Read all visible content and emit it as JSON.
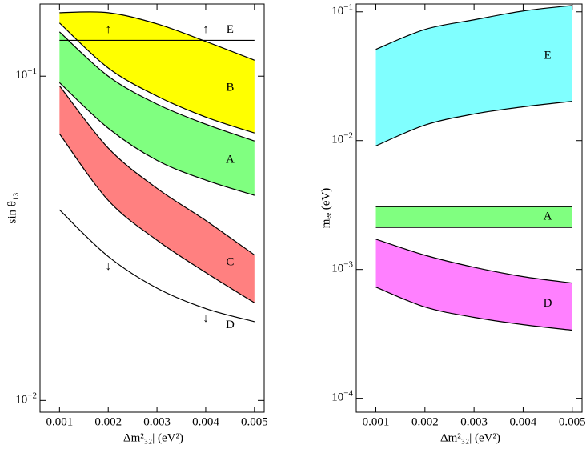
{
  "chart_data": [
    {
      "type": "band",
      "log_y": true,
      "xlabel": "|Δm²₃₂| (eV²)",
      "ylabel": "sin θ₁₃",
      "xlim": [
        0.0006,
        0.0052
      ],
      "ylim": [
        0.0092,
        0.167
      ],
      "xticks": [
        0.001,
        0.002,
        0.003,
        0.004,
        0.005
      ],
      "yticks": [
        {
          "value": 0.01,
          "label": "10−2"
        },
        {
          "value": 0.1,
          "label": "10−1"
        }
      ],
      "series": [
        {
          "name": "A",
          "color": "#80ff80",
          "x": [
            0.001,
            0.002,
            0.003,
            0.004,
            0.005
          ],
          "upper": [
            0.137,
            0.1,
            0.082,
            0.0711,
            0.0631
          ],
          "lower": [
            0.0955,
            0.0691,
            0.055,
            0.0478,
            0.0429
          ]
        },
        {
          "name": "B",
          "color": "#ffff00",
          "x": [
            0.001,
            0.002,
            0.003,
            0.004,
            0.005
          ],
          "upper": [
            0.157,
            0.157,
            0.145,
            0.128,
            0.112
          ],
          "lower": [
            0.146,
            0.106,
            0.0868,
            0.0748,
            0.0668
          ]
        },
        {
          "name": "C",
          "color": "#ff8080",
          "x": [
            0.001,
            0.002,
            0.003,
            0.004,
            0.005
          ],
          "upper": [
            0.0934,
            0.06,
            0.0451,
            0.0359,
            0.0281
          ],
          "lower": [
            0.0664,
            0.0414,
            0.0312,
            0.0248,
            0.02
          ]
        },
        {
          "name": "D",
          "color": "#000000",
          "x": [
            0.001,
            0.002,
            0.003,
            0.004,
            0.005
          ],
          "values": [
            0.0387,
            0.0278,
            0.0222,
            0.0192,
            0.0175
          ],
          "arrow": "↓",
          "arrow_x": [
            0.002,
            0.004
          ]
        },
        {
          "name": "E",
          "color": "#000000",
          "x": [
            0.001,
            0.005
          ],
          "values": [
            0.129,
            0.129
          ],
          "arrow": "↑",
          "arrow_x": [
            0.002,
            0.004
          ]
        }
      ]
    },
    {
      "type": "band",
      "log_y": true,
      "xlabel": "|Δm²₃₂| (eV²)",
      "ylabel": "mₑₑ (eV)",
      "xlim": [
        0.0006,
        0.0052
      ],
      "ylim": [
        7.8e-05,
        0.115
      ],
      "xticks": [
        0.001,
        0.002,
        0.003,
        0.004,
        0.005
      ],
      "yticks": [
        {
          "value": 0.0001,
          "label": "10−4"
        },
        {
          "value": 0.001,
          "label": "10−3"
        },
        {
          "value": 0.01,
          "label": "10−2"
        },
        {
          "value": 0.1,
          "label": "10−1"
        }
      ],
      "series": [
        {
          "name": "E",
          "color": "#80ffff",
          "x": [
            0.001,
            0.002,
            0.003,
            0.004,
            0.005
          ],
          "upper": [
            0.0511,
            0.073,
            0.0867,
            0.1015,
            0.112
          ],
          "lower": [
            0.0091,
            0.0132,
            0.0161,
            0.0183,
            0.0202
          ]
        },
        {
          "name": "A",
          "color": "#80ff80",
          "x": [
            0.001,
            0.005
          ],
          "upper": [
            0.00307,
            0.00307
          ],
          "lower": [
            0.00212,
            0.00212
          ]
        },
        {
          "name": "D",
          "color": "#ff80ff",
          "x": [
            0.001,
            0.002,
            0.003,
            0.004,
            0.005
          ],
          "upper": [
            0.00172,
            0.00129,
            0.00104,
            0.00088,
            0.000785
          ],
          "lower": [
            0.00073,
            0.000511,
            0.000425,
            0.000373,
            0.000338
          ]
        }
      ]
    }
  ]
}
